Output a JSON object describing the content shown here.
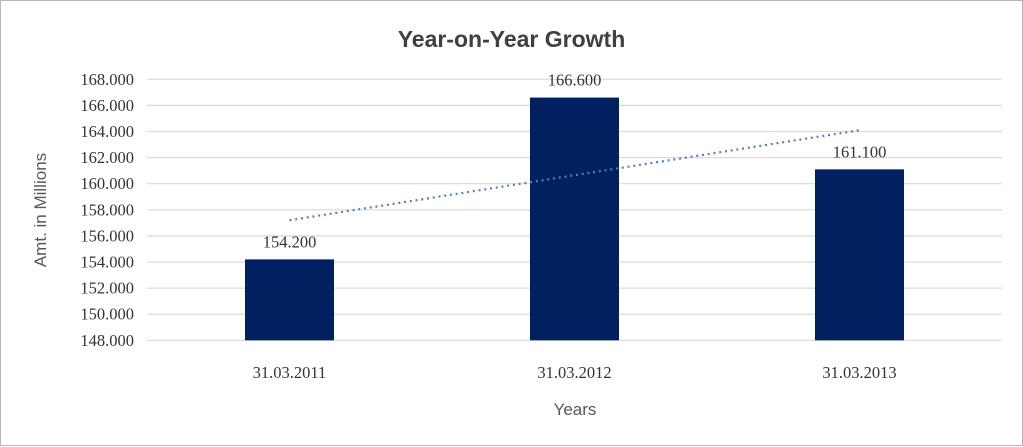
{
  "window": {
    "background": "#ffffff",
    "border_color": "#b7b7b7"
  },
  "chart_data": {
    "type": "bar",
    "title": "Year-on-Year Growth",
    "xlabel": "Years",
    "ylabel": "Amt. in Millions",
    "categories": [
      "31.03.2011",
      "31.03.2012",
      "31.03.2013"
    ],
    "values": [
      154.2,
      166.6,
      161.1
    ],
    "data_labels": [
      "154.200",
      "166.600",
      "161.100"
    ],
    "ylim": [
      148,
      168
    ],
    "ytick_step": 2,
    "ytick_labels": [
      "148.000",
      "150.000",
      "152.000",
      "154.000",
      "156.000",
      "158.000",
      "160.000",
      "162.000",
      "164.000",
      "166.000",
      "168.000"
    ],
    "grid": true,
    "legend_position": "none",
    "bar_color": "#002060",
    "gridline_color": "#d9d9d9",
    "title_color": "#404040",
    "axis_title_color": "#595959",
    "tick_label_color": "#333333",
    "trendline": {
      "type": "linear",
      "style": "dotted",
      "color": "#4f81bd",
      "endpoint_values": [
        157.2,
        164.1
      ]
    }
  }
}
